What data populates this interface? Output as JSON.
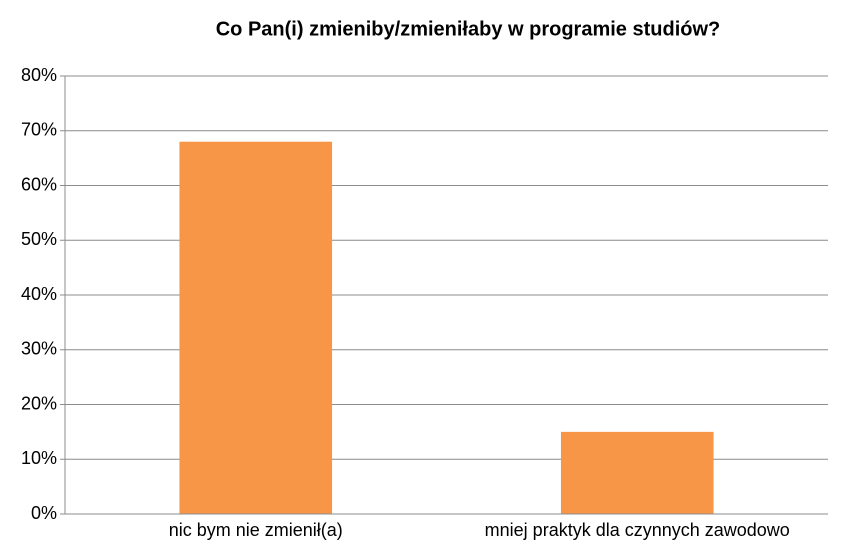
{
  "chart_data": {
    "type": "bar",
    "title": "Co Pan(i) zmieniby/zmieniłaby w programie studiów?",
    "categories": [
      "nic bym nie zmienił(a)",
      "mniej praktyk dla czynnych zawodowo"
    ],
    "values": [
      68,
      15
    ],
    "color": "#f79646",
    "ylim": [
      0,
      80
    ],
    "yticks": [
      {
        "value": 0,
        "label": "0%"
      },
      {
        "value": 10,
        "label": "10%"
      },
      {
        "value": 20,
        "label": "20%"
      },
      {
        "value": 30,
        "label": "30%"
      },
      {
        "value": 40,
        "label": "40%"
      },
      {
        "value": 50,
        "label": "50%"
      },
      {
        "value": 60,
        "label": "60%"
      },
      {
        "value": 70,
        "label": "70%"
      },
      {
        "value": 80,
        "label": "80%"
      }
    ],
    "grid": true
  }
}
